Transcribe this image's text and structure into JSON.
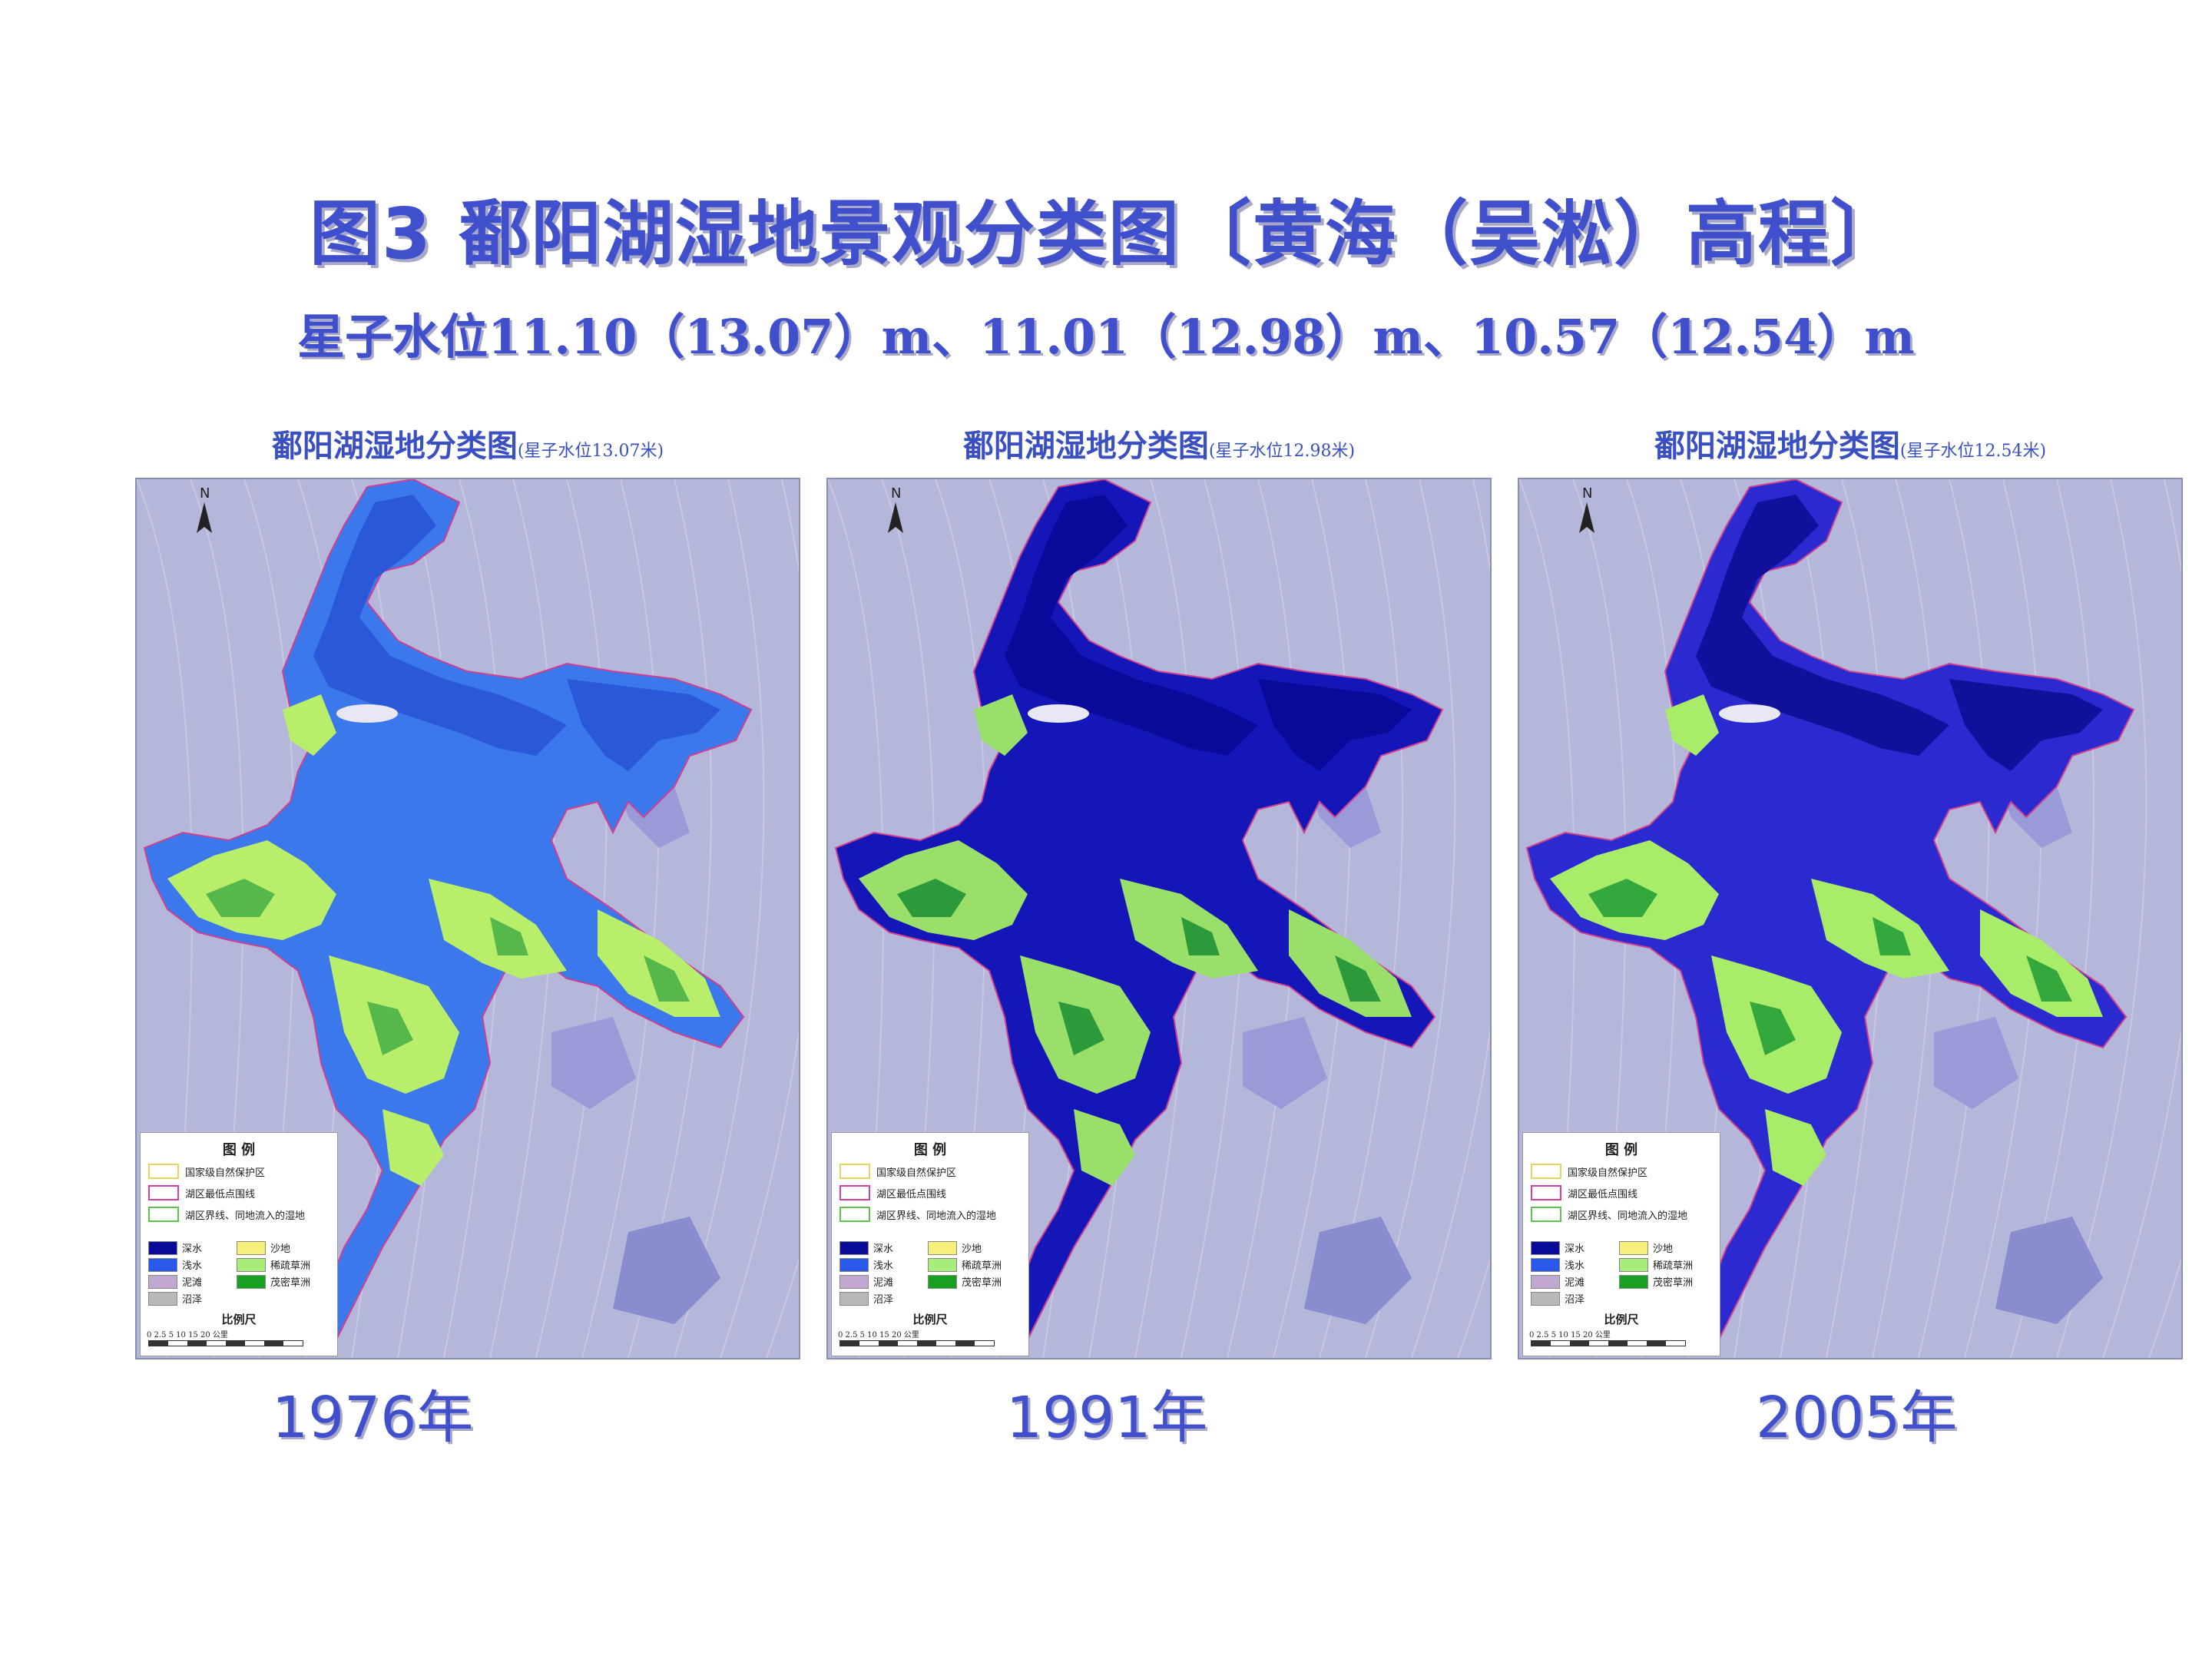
{
  "slide": {
    "title": "图3 鄱阳湖湿地景观分类图〔黄海（吴淞）高程〕",
    "subtitle": "星子水位11.10（13.07）m、11.01（12.98）m、10.57（12.54）m"
  },
  "maps": [
    {
      "title": "鄱阳湖湿地分类图",
      "title_note": "(星子水位13.07米)",
      "year": "1976年",
      "colors": {
        "background": "#b4b6da",
        "lake": "#3a78ec",
        "deep": "#2a58d8",
        "veg": "#b8ee6a",
        "veg2": "#56b84a"
      }
    },
    {
      "title": "鄱阳湖湿地分类图",
      "title_note": "(星子水位12.98米)",
      "year": "1991年",
      "colors": {
        "background": "#b4b6da",
        "lake": "#1416b8",
        "deep": "#0a0a9a",
        "veg": "#9adf6a",
        "veg2": "#2c9a3a"
      }
    },
    {
      "title": "鄱阳湖湿地分类图",
      "title_note": "(星子水位12.54米)",
      "year": "2005年",
      "colors": {
        "background": "#b4b6da",
        "lake": "#2a2ad0",
        "deep": "#10109a",
        "veg": "#a8ec6a",
        "veg2": "#34a83c"
      }
    }
  ],
  "legend": {
    "title": "图 例",
    "lines": [
      "国家级自然保护区",
      "湖区最低点围线",
      "湖区界线、同地流入的湿地"
    ],
    "classes": [
      {
        "label": "深水",
        "color": "#0a0a9a"
      },
      {
        "label": "浅水",
        "color": "#2a58e8"
      },
      {
        "label": "泥滩",
        "color": "#c0a8d0"
      },
      {
        "label": "沼泽",
        "color": "#b8b8b8"
      },
      {
        "label": "沙地",
        "color": "#f4f07a"
      },
      {
        "label": "稀疏草洲",
        "color": "#a8ec7a"
      },
      {
        "label": "茂密草洲",
        "color": "#18a020"
      }
    ],
    "scale_title": "比例尺",
    "scale_numbers": "0  2.5  5    10   15   20  公里",
    "north": "N"
  }
}
